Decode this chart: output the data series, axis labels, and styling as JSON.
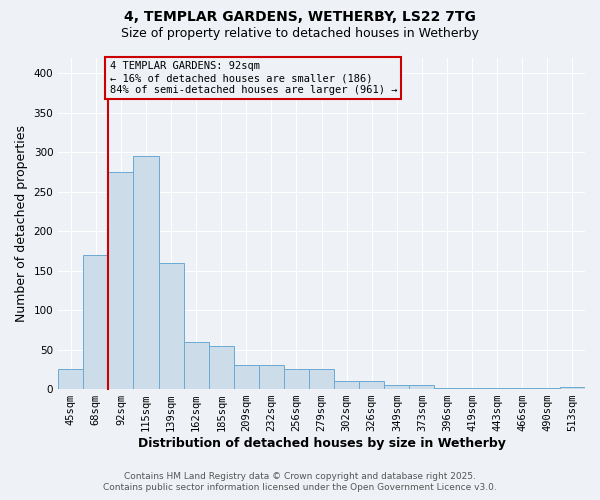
{
  "title_line1": "4, TEMPLAR GARDENS, WETHERBY, LS22 7TG",
  "title_line2": "Size of property relative to detached houses in Wetherby",
  "xlabel": "Distribution of detached houses by size in Wetherby",
  "ylabel": "Number of detached properties",
  "categories": [
    "45sqm",
    "68sqm",
    "92sqm",
    "115sqm",
    "139sqm",
    "162sqm",
    "185sqm",
    "209sqm",
    "232sqm",
    "256sqm",
    "279sqm",
    "302sqm",
    "326sqm",
    "349sqm",
    "373sqm",
    "396sqm",
    "419sqm",
    "443sqm",
    "466sqm",
    "490sqm",
    "513sqm"
  ],
  "values": [
    25,
    170,
    275,
    295,
    160,
    60,
    55,
    30,
    30,
    25,
    25,
    10,
    10,
    5,
    5,
    2,
    2,
    1,
    2,
    2,
    3
  ],
  "bar_color": "#ccdce8",
  "bar_edge_color": "#6aaad4",
  "highlight_index": 2,
  "highlight_color": "#cc0000",
  "ylim": [
    0,
    420
  ],
  "yticks": [
    0,
    50,
    100,
    150,
    200,
    250,
    300,
    350,
    400
  ],
  "annotation_line1": "4 TEMPLAR GARDENS: 92sqm",
  "annotation_line2": "← 16% of detached houses are smaller (186)",
  "annotation_line3": "84% of semi-detached houses are larger (961) →",
  "annotation_box_color": "#cc0000",
  "footnote1": "Contains HM Land Registry data © Crown copyright and database right 2025.",
  "footnote2": "Contains public sector information licensed under the Open Government Licence v3.0.",
  "bg_color": "#eef2f6",
  "grid_color": "#ffffff",
  "title_fontsize": 10,
  "subtitle_fontsize": 9,
  "axis_label_fontsize": 9,
  "tick_fontsize": 7.5,
  "annotation_fontsize": 7.5,
  "footnote_fontsize": 6.5
}
